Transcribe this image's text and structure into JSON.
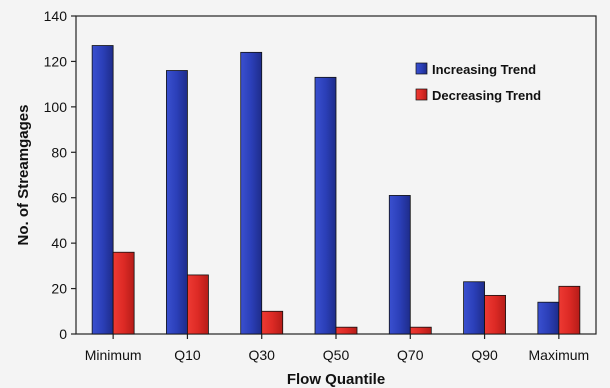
{
  "chart_data": {
    "type": "bar",
    "xlabel": "Flow Quantile",
    "ylabel": "No. of Streamgages",
    "ylim": [
      0,
      140
    ],
    "yticks": [
      0,
      20,
      40,
      60,
      80,
      100,
      120,
      140
    ],
    "grid": false,
    "legend_position": "top-right",
    "categories": [
      "Minimum",
      "Q10",
      "Q30",
      "Q50",
      "Q70",
      "Q90",
      "Maximum"
    ],
    "series": [
      {
        "name": "Increasing Trend",
        "color": "#2b3fb0",
        "values": [
          127,
          116,
          124,
          113,
          61,
          23,
          14
        ]
      },
      {
        "name": "Decreasing Trend",
        "color": "#dd2a25",
        "values": [
          36,
          26,
          10,
          3,
          3,
          17,
          21
        ]
      }
    ]
  }
}
